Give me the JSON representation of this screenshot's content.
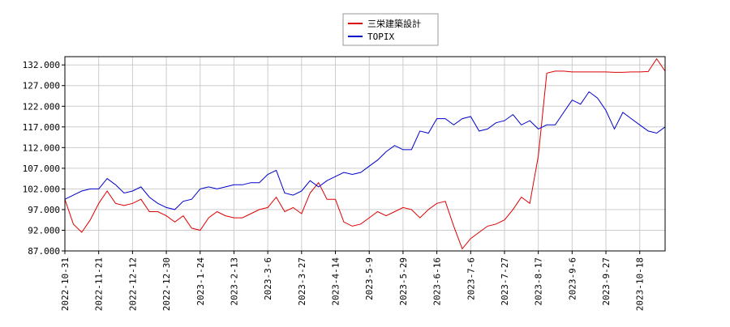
{
  "chart_data": {
    "type": "line",
    "categories": [
      "2022-10-31",
      null,
      null,
      null,
      "2022-11-21",
      null,
      null,
      null,
      "2022-12-12",
      null,
      null,
      null,
      "2022-12-30",
      null,
      null,
      null,
      "2023-1-24",
      null,
      null,
      null,
      "2023-2-13",
      null,
      null,
      null,
      "2023-3-6",
      null,
      null,
      null,
      "2023-3-27",
      null,
      null,
      null,
      "2023-4-14",
      null,
      null,
      null,
      "2023-5-9",
      null,
      null,
      null,
      "2023-5-29",
      null,
      null,
      null,
      "2023-6-16",
      null,
      null,
      null,
      "2023-7-6",
      null,
      null,
      null,
      "2023-7-27",
      null,
      null,
      null,
      "2023-8-17",
      null,
      null,
      null,
      "2023-9-6",
      null,
      null,
      null,
      "2023-9-27",
      null,
      null,
      null,
      "2023-10-18",
      null,
      null,
      null
    ],
    "series": [
      {
        "name": "三栄建築設計",
        "color": "#dd0000",
        "values": [
          99.5,
          93.5,
          91.5,
          94.5,
          98.5,
          101.5,
          98.5,
          98,
          98.5,
          99.5,
          96.5,
          96.5,
          95.5,
          94,
          95.5,
          92.5,
          92,
          95,
          96.5,
          95.5,
          95,
          95,
          96,
          97,
          97.5,
          100,
          96.5,
          97.5,
          96,
          101,
          103.5,
          99.5,
          99.5,
          94,
          93,
          93.5,
          95,
          96.5,
          95.5,
          96.5,
          97.5,
          97,
          95,
          97,
          98.5,
          99,
          93,
          87.5,
          90,
          91.5,
          93,
          93.5,
          94.5,
          97,
          100,
          98.5,
          110,
          130,
          130.5,
          130.5,
          130.3,
          130.3,
          130.3,
          130.3,
          130.3,
          130.2,
          130.2,
          130.3,
          130.3,
          130.4,
          133.5,
          130.5
        ]
      },
      {
        "name": "TOPIX",
        "color": "#0000cc",
        "values": [
          99.5,
          100.5,
          101.5,
          102,
          102,
          104.5,
          103,
          101,
          101.5,
          102.5,
          100,
          98.5,
          97.5,
          97,
          99,
          99.5,
          102,
          102.5,
          102,
          102.5,
          103,
          103,
          103.5,
          103.5,
          105.5,
          106.5,
          101,
          100.5,
          101.5,
          104,
          102.5,
          104,
          105,
          106,
          105.5,
          106,
          107.5,
          109,
          111,
          112.5,
          111.5,
          111.5,
          116,
          115.5,
          119,
          119,
          117.5,
          119,
          119.5,
          116,
          116.5,
          118,
          118.5,
          120,
          117.5,
          118.5,
          116.5,
          117.5,
          117.5,
          120.5,
          123.5,
          122.5,
          125.5,
          124,
          121,
          116.5,
          120.5,
          119,
          117.5,
          116,
          115.5,
          117
        ]
      }
    ],
    "ylim": [
      87,
      134
    ],
    "yticks": [
      {
        "value": 87,
        "label": "87.000"
      },
      {
        "value": 92,
        "label": "92.000"
      },
      {
        "value": 97,
        "label": "97.000"
      },
      {
        "value": 102,
        "label": "102.000"
      },
      {
        "value": 107,
        "label": "107.000"
      },
      {
        "value": 112,
        "label": "112.000"
      },
      {
        "value": 117,
        "label": "117.000"
      },
      {
        "value": 122,
        "label": "122.000"
      },
      {
        "value": 127,
        "label": "127.000"
      },
      {
        "value": 132,
        "label": "132.000"
      }
    ],
    "grid": true
  }
}
